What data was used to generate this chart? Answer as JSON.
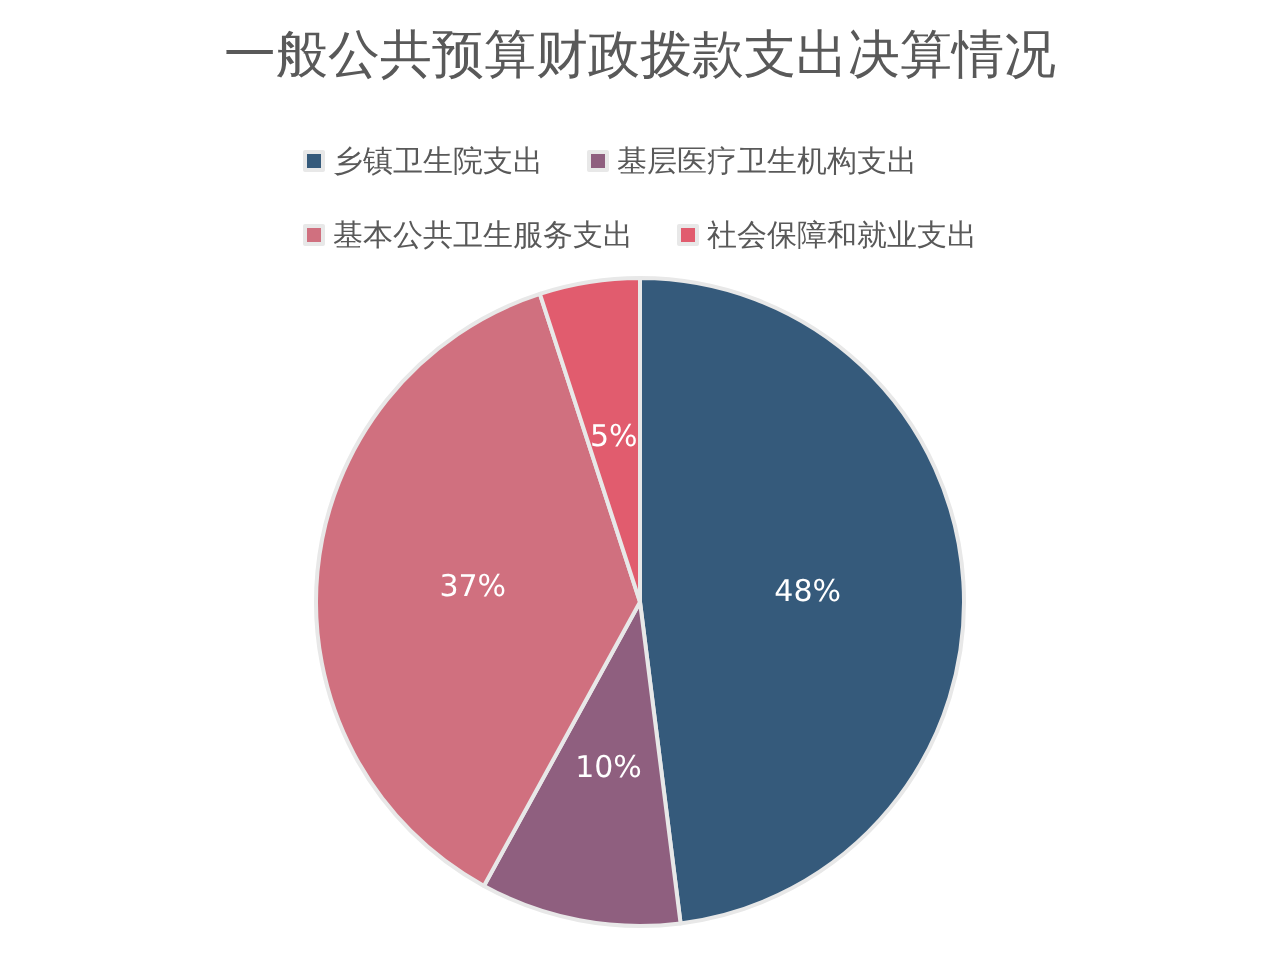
{
  "chart_data": {
    "type": "pie",
    "title": "一般公共预算财政拨款支出决算情况",
    "categories": [
      "乡镇卫生院支出",
      "基层医疗卫生机构支出",
      "基本公共卫生服务支出",
      "社会保障和就业支出"
    ],
    "values": [
      48,
      10,
      37,
      5
    ],
    "colors": [
      "#355a7b",
      "#8f5f7f",
      "#d0707f",
      "#e15c6e"
    ],
    "value_labels": [
      "48%",
      "10%",
      "37%",
      "5%"
    ],
    "legend": "top"
  }
}
